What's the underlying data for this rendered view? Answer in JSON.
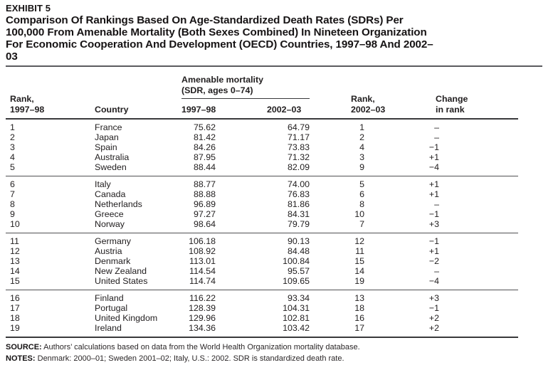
{
  "page": {
    "exhibit_label": "EXHIBIT 5",
    "title_lines": [
      "Comparison Of Rankings Based On Age-Standardized Death Rates (SDRs) Per",
      "100,000 From Amenable Mortality (Both Sexes Combined) In Nineteen Organization",
      "For Economic Cooperation And Development (OECD) Countries, 1997–98 And 2002–",
      "03"
    ]
  },
  "table": {
    "span_header": {
      "line1": "Amenable mortality",
      "line2": "(SDR, ages 0–74)"
    },
    "columns": {
      "rank_1997_line1": "Rank,",
      "rank_1997_line2": "1997–98",
      "country": "Country",
      "sdr_1997": "1997–98",
      "sdr_2002": "2002–03",
      "rank_2002_line1": "Rank,",
      "rank_2002_line2": "2002–03",
      "change_line1": "Change",
      "change_line2": "in rank"
    },
    "column_keys": [
      "rank_1997",
      "country",
      "sdr_1997",
      "sdr_2002",
      "rank_2002",
      "change_in_rank"
    ],
    "groups": [
      {
        "rows": [
          [
            "1",
            "France",
            "75.62",
            "64.79",
            "1",
            "–"
          ],
          [
            "2",
            "Japan",
            "81.42",
            "71.17",
            "2",
            "–"
          ],
          [
            "3",
            "Spain",
            "84.26",
            "73.83",
            "4",
            "−1"
          ],
          [
            "4",
            "Australia",
            "87.95",
            "71.32",
            "3",
            "+1"
          ],
          [
            "5",
            "Sweden",
            "88.44",
            "82.09",
            "9",
            "−4"
          ]
        ]
      },
      {
        "rows": [
          [
            "6",
            "Italy",
            "88.77",
            "74.00",
            "5",
            "+1"
          ],
          [
            "7",
            "Canada",
            "88.88",
            "76.83",
            "6",
            "+1"
          ],
          [
            "8",
            "Netherlands",
            "96.89",
            "81.86",
            "8",
            "–"
          ],
          [
            "9",
            "Greece",
            "97.27",
            "84.31",
            "10",
            "−1"
          ],
          [
            "10",
            "Norway",
            "98.64",
            "79.79",
            "7",
            "+3"
          ]
        ]
      },
      {
        "rows": [
          [
            "11",
            "Germany",
            "106.18",
            "90.13",
            "12",
            "−1"
          ],
          [
            "12",
            "Austria",
            "108.92",
            "84.48",
            "11",
            "+1"
          ],
          [
            "13",
            "Denmark",
            "113.01",
            "100.84",
            "15",
            "−2"
          ],
          [
            "14",
            "New Zealand",
            "114.54",
            "95.57",
            "14",
            "–"
          ],
          [
            "15",
            "United States",
            "114.74",
            "109.65",
            "19",
            "−4"
          ]
        ]
      },
      {
        "rows": [
          [
            "16",
            "Finland",
            "116.22",
            "93.34",
            "13",
            "+3"
          ],
          [
            "17",
            "Portugal",
            "128.39",
            "104.31",
            "18",
            "−1"
          ],
          [
            "18",
            "United Kingdom",
            "129.96",
            "102.81",
            "16",
            "+2"
          ],
          [
            "19",
            "Ireland",
            "134.36",
            "103.42",
            "17",
            "+2"
          ]
        ]
      }
    ]
  },
  "footnotes": {
    "source_label": "SOURCE:",
    "source_text": " Authors’ calculations based on data from the World Health Organization mortality database.",
    "notes_label": "NOTES:",
    "notes_text": " Denmark: 2000–01; Sweden 2001–02; Italy, U.S.: 2002. SDR is standardized death rate."
  },
  "colors": {
    "text": "#232021",
    "rule_heavy": "#39393b",
    "rule_light": "#515153",
    "background": "#ffffff"
  }
}
